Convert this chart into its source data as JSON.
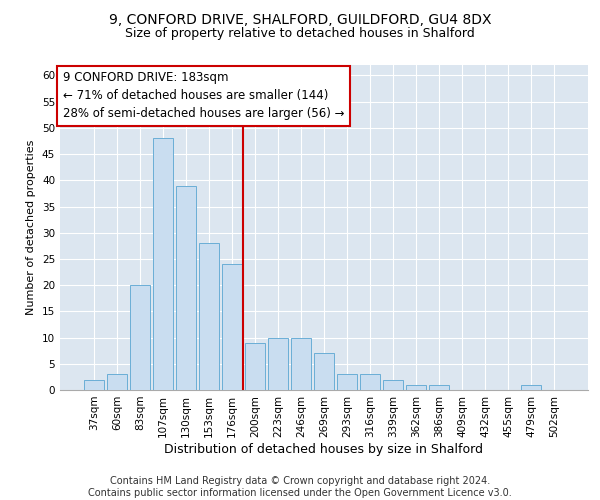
{
  "title1": "9, CONFORD DRIVE, SHALFORD, GUILDFORD, GU4 8DX",
  "title2": "Size of property relative to detached houses in Shalford",
  "xlabel": "Distribution of detached houses by size in Shalford",
  "ylabel": "Number of detached properties",
  "categories": [
    "37sqm",
    "60sqm",
    "83sqm",
    "107sqm",
    "130sqm",
    "153sqm",
    "176sqm",
    "200sqm",
    "223sqm",
    "246sqm",
    "269sqm",
    "293sqm",
    "316sqm",
    "339sqm",
    "362sqm",
    "386sqm",
    "409sqm",
    "432sqm",
    "455sqm",
    "479sqm",
    "502sqm"
  ],
  "values": [
    2,
    3,
    20,
    48,
    39,
    28,
    24,
    9,
    10,
    10,
    7,
    3,
    3,
    2,
    1,
    1,
    0,
    0,
    0,
    1,
    0
  ],
  "bar_color": "#c9ddf0",
  "bar_edge_color": "#6aaed6",
  "vline_x": 6.5,
  "vline_color": "#cc0000",
  "annotation_text": "9 CONFORD DRIVE: 183sqm\n← 71% of detached houses are smaller (144)\n28% of semi-detached houses are larger (56) →",
  "annotation_box_color": "#ffffff",
  "annotation_box_edge": "#cc0000",
  "ylim": [
    0,
    62
  ],
  "yticks": [
    0,
    5,
    10,
    15,
    20,
    25,
    30,
    35,
    40,
    45,
    50,
    55,
    60
  ],
  "bg_color": "#dce6f0",
  "footer": "Contains HM Land Registry data © Crown copyright and database right 2024.\nContains public sector information licensed under the Open Government Licence v3.0.",
  "title1_fontsize": 10,
  "title2_fontsize": 9,
  "xlabel_fontsize": 9,
  "ylabel_fontsize": 8,
  "tick_fontsize": 7.5,
  "annotation_fontsize": 8.5,
  "footer_fontsize": 7
}
